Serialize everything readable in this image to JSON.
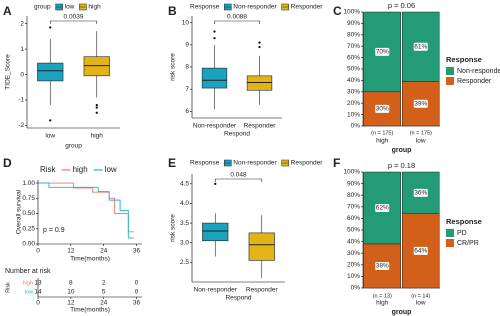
{
  "chart_data": [
    {
      "panel": "A",
      "type": "box",
      "legend_title": "group",
      "categories": [
        "low",
        "high"
      ],
      "series": [
        {
          "name": "low",
          "color": "#1ba3bd",
          "whisker_low": -1.2,
          "q1": -0.25,
          "median": 0.15,
          "q3": 0.45,
          "whisker_high": 1.4,
          "outliers": [
            1.85,
            -1.8
          ]
        },
        {
          "name": "high",
          "color": "#e3b418",
          "whisker_low": -0.9,
          "q1": -0.05,
          "median": 0.35,
          "q3": 0.7,
          "whisker_high": 1.7,
          "outliers": [
            -1.2,
            -1.3,
            -1.5
          ]
        }
      ],
      "annotation": "0.0039",
      "x_label": "group",
      "y_label": "TIDE_Score",
      "ylim": [
        -2.1,
        2.3
      ],
      "yticks": [
        -2,
        -1,
        0,
        1,
        2
      ]
    },
    {
      "panel": "B",
      "type": "box",
      "legend_title": "Response",
      "categories": [
        "Non-responder",
        "Responder"
      ],
      "series": [
        {
          "name": "Non-responder",
          "color": "#1ba3bd",
          "whisker_low": 6.1,
          "q1": 7.05,
          "median": 7.4,
          "q3": 7.95,
          "whisker_high": 9.0,
          "outliers": [
            9.3,
            9.6
          ]
        },
        {
          "name": "Responder",
          "color": "#e3b418",
          "whisker_low": 6.3,
          "q1": 6.95,
          "median": 7.3,
          "q3": 7.6,
          "whisker_high": 8.5,
          "outliers": [
            8.9,
            9.1
          ]
        }
      ],
      "annotation": "0.0088",
      "x_label": "Respond",
      "y_label": "risk score",
      "ylim": [
        5.7,
        10.3
      ],
      "yticks": [
        6,
        7,
        8,
        9,
        10
      ]
    },
    {
      "panel": "C",
      "type": "stacked_bar",
      "title": "p = 0.06",
      "legend_title": "Response",
      "categories": [
        "high",
        "low"
      ],
      "n_labels": [
        "(n = 175)",
        "(n = 175)"
      ],
      "series": [
        {
          "name": "Non-responder",
          "color": "#239b76",
          "values": [
            70,
            61
          ],
          "value_labels": [
            "70%",
            "61%"
          ]
        },
        {
          "name": "Responder",
          "color": "#d2601a",
          "values": [
            30,
            39
          ],
          "value_labels": [
            "30%",
            "39%"
          ]
        }
      ],
      "x_label": "group",
      "ylim": [
        0,
        100
      ],
      "yticks": [
        {
          "value": 0,
          "label": "0%"
        },
        {
          "value": 10,
          "label": "10%"
        },
        {
          "value": 20,
          "label": "20%"
        },
        {
          "value": 30,
          "label": "30%"
        },
        {
          "value": 40,
          "label": "40%"
        },
        {
          "value": 50,
          "label": "50%"
        },
        {
          "value": 60,
          "label": "60%"
        },
        {
          "value": 70,
          "label": "70%"
        },
        {
          "value": 80,
          "label": "80%"
        },
        {
          "value": 90,
          "label": "90%"
        },
        {
          "value": 100,
          "label": "100%"
        }
      ]
    },
    {
      "panel": "D",
      "type": "survival",
      "legend_title": "Risk",
      "p_text": "p = 0.9",
      "x_label": "Time(months)",
      "y_label": "Overall survival",
      "series": [
        {
          "name": "high",
          "color": "#f0736b",
          "x": [
            0,
            13,
            13,
            20,
            20,
            26,
            26,
            28,
            28,
            33,
            33,
            35
          ],
          "values": [
            1,
            1,
            0.92,
            0.92,
            0.85,
            0.85,
            0.75,
            0.75,
            0.5,
            0.5,
            0.2,
            0.2
          ]
        },
        {
          "name": "low",
          "color": "#1db8c4",
          "x": [
            0,
            4,
            4,
            22,
            22,
            26,
            26,
            30,
            30,
            33,
            33,
            35
          ],
          "values": [
            1,
            1,
            0.93,
            0.93,
            0.86,
            0.86,
            0.72,
            0.72,
            0.55,
            0.55,
            0.1,
            0.1
          ]
        }
      ],
      "xlim": [
        0,
        38
      ],
      "xticks": [
        0,
        12,
        24,
        36
      ],
      "ylim": [
        0,
        1.05
      ],
      "yticks": [
        {
          "value": 0,
          "label": "0.00"
        },
        {
          "value": 0.25,
          "label": "0.25"
        },
        {
          "value": 0.5,
          "label": "0.50"
        },
        {
          "value": 0.75,
          "label": "0.75"
        },
        {
          "value": 1,
          "label": "1.00"
        }
      ],
      "risk_table": {
        "title": "Number at risk",
        "rows": [
          {
            "name": "high",
            "values": [
              13,
              8,
              2,
              0
            ]
          },
          {
            "name": "low",
            "values": [
              14,
              10,
              5,
              0
            ]
          }
        ]
      }
    },
    {
      "panel": "E",
      "type": "box",
      "legend_title": "Response",
      "categories": [
        "Non-responder",
        "Responder"
      ],
      "series": [
        {
          "name": "Non-responder",
          "color": "#1ba3bd",
          "whisker_low": 2.65,
          "q1": 3.05,
          "median": 3.3,
          "q3": 3.5,
          "whisker_high": 3.75,
          "outliers": [
            4.5
          ]
        },
        {
          "name": "Responder",
          "color": "#e3b418",
          "whisker_low": 2.1,
          "q1": 2.55,
          "median": 2.95,
          "q3": 3.25,
          "whisker_high": 3.7,
          "outliers": []
        }
      ],
      "annotation": "0.048",
      "x_label": "Respond",
      "y_label": "risk score",
      "ylim": [
        2.0,
        4.75
      ],
      "yticks": [
        2.5,
        {
          "value": 3,
          "label": "3.0"
        },
        3.5,
        {
          "value": 4,
          "label": "4.0"
        },
        4.5
      ]
    },
    {
      "panel": "F",
      "type": "stacked_bar",
      "title": "p = 0.18",
      "legend_title": "Response",
      "categories": [
        "high",
        "low"
      ],
      "n_labels": [
        "(n = 13)",
        "(n = 14)"
      ],
      "series": [
        {
          "name": "PD",
          "color": "#239b76",
          "values": [
            62,
            36
          ],
          "value_labels": [
            "62%",
            "36%"
          ]
        },
        {
          "name": "CR/PR",
          "color": "#d2601a",
          "values": [
            38,
            64
          ],
          "value_labels": [
            "38%",
            "64%"
          ]
        }
      ],
      "x_label": "group",
      "ylim": [
        0,
        100
      ],
      "yticks": [
        {
          "value": 0,
          "label": "0%"
        },
        {
          "value": 10,
          "label": "10%"
        },
        {
          "value": 20,
          "label": "20%"
        },
        {
          "value": 30,
          "label": "30%"
        },
        {
          "value": 40,
          "label": "40%"
        },
        {
          "value": 50,
          "label": "50%"
        },
        {
          "value": 60,
          "label": "60%"
        },
        {
          "value": 70,
          "label": "70%"
        },
        {
          "value": 80,
          "label": "80%"
        },
        {
          "value": 90,
          "label": "90%"
        },
        {
          "value": 100,
          "label": "100%"
        }
      ]
    }
  ]
}
